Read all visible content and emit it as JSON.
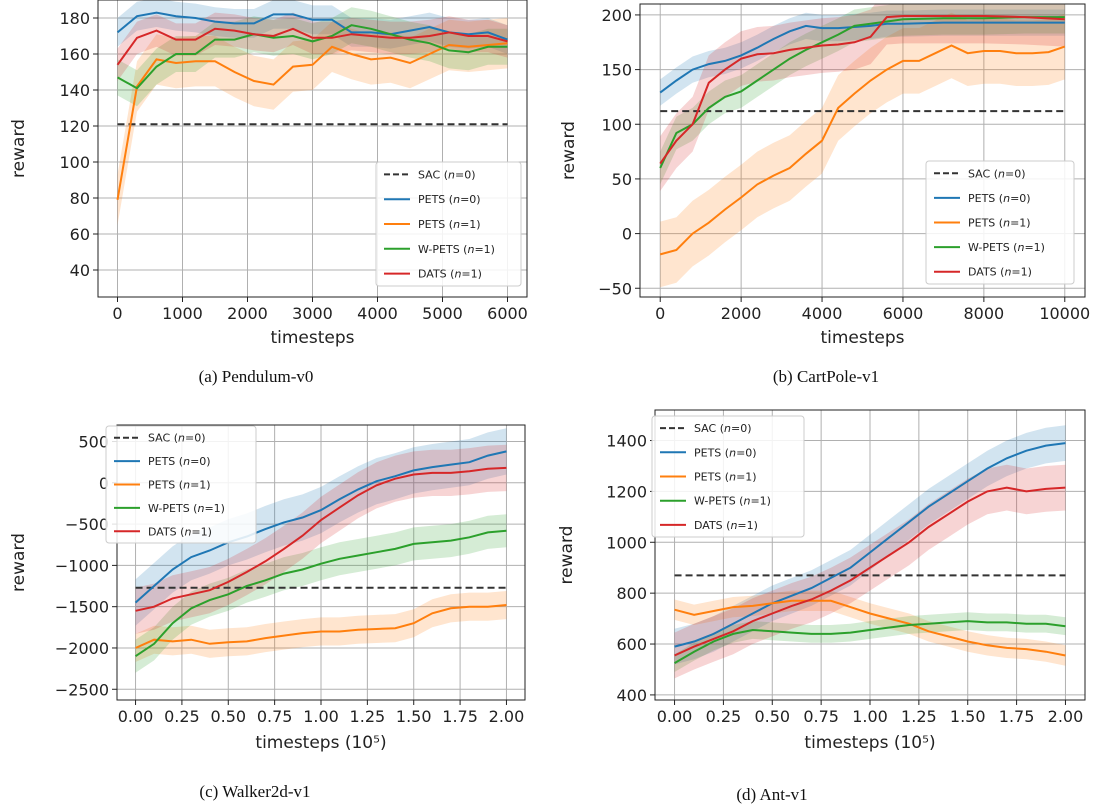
{
  "colors": {
    "SAC": "#333333",
    "PETS (n=0)": "#1f77b4",
    "PETS (n=1)": "#ff7f0e",
    "W-PETS (n=1)": "#2ca02c",
    "DATS (n=1)": "#d62728"
  },
  "legend_labels": [
    "SAC (n=0)",
    "PETS (n=0)",
    "PETS (n=1)",
    "W-PETS (n=1)",
    "DATS (n=1)"
  ],
  "chart_data": [
    {
      "type": "line",
      "caption": "(a) Pendulum-v0",
      "xlabel": "timesteps",
      "ylabel": "reward",
      "xlim": [
        -300,
        6300
      ],
      "ylim": [
        25,
        190
      ],
      "xticks": [
        0,
        1000,
        2000,
        3000,
        4000,
        5000,
        6000
      ],
      "yticks": [
        40,
        60,
        80,
        100,
        120,
        140,
        160,
        180
      ],
      "xtick_labels": [
        "0",
        "1000",
        "2000",
        "3000",
        "4000",
        "5000",
        "6000"
      ],
      "ytick_labels": [
        "40",
        "60",
        "80",
        "100",
        "120",
        "140",
        "160",
        "180"
      ],
      "grid": true,
      "legend_position": "center-right",
      "baseline": {
        "name": "SAC (n=0)",
        "y": 121,
        "x_range": [
          0,
          6000
        ]
      },
      "series": [
        {
          "name": "PETS (n=0)",
          "band": 8,
          "x": [
            0,
            300,
            600,
            900,
            1200,
            1500,
            1800,
            2100,
            2400,
            2700,
            3000,
            3300,
            3600,
            3900,
            4200,
            4500,
            4800,
            5100,
            5400,
            5700,
            6000
          ],
          "y": [
            172,
            181,
            183,
            181,
            180,
            178,
            177,
            177,
            182,
            182,
            179,
            179,
            172,
            172,
            171,
            173,
            175,
            172,
            171,
            172,
            168
          ]
        },
        {
          "name": "PETS (n=1)",
          "band": 14,
          "x": [
            0,
            300,
            600,
            900,
            1200,
            1500,
            1800,
            2100,
            2400,
            2700,
            3000,
            3300,
            3600,
            3900,
            4200,
            4500,
            4800,
            5100,
            5400,
            5700,
            6000
          ],
          "y": [
            79,
            142,
            157,
            155,
            156,
            156,
            150,
            145,
            143,
            153,
            154,
            164,
            160,
            157,
            158,
            155,
            160,
            165,
            164,
            165,
            166
          ]
        },
        {
          "name": "W-PETS (n=1)",
          "band": 10,
          "x": [
            0,
            300,
            600,
            900,
            1200,
            1500,
            1800,
            2100,
            2400,
            2700,
            3000,
            3300,
            3600,
            3900,
            4200,
            4500,
            4800,
            5100,
            5400,
            5700,
            6000
          ],
          "y": [
            147,
            141,
            153,
            160,
            160,
            168,
            168,
            171,
            169,
            170,
            167,
            170,
            176,
            174,
            171,
            168,
            166,
            162,
            161,
            164,
            164
          ]
        },
        {
          "name": "DATS (n=1)",
          "band": 9,
          "x": [
            0,
            300,
            600,
            900,
            1200,
            1500,
            1800,
            2100,
            2400,
            2700,
            3000,
            3300,
            3600,
            3900,
            4200,
            4500,
            4800,
            5100,
            5400,
            5700,
            6000
          ],
          "y": [
            154,
            169,
            173,
            168,
            168,
            174,
            173,
            171,
            170,
            174,
            169,
            169,
            171,
            170,
            169,
            169,
            170,
            172,
            170,
            170,
            167
          ]
        }
      ]
    },
    {
      "type": "line",
      "caption": "(b) CartPole-v1",
      "xlabel": "timesteps",
      "ylabel": "reward",
      "xlim": [
        -500,
        10500
      ],
      "ylim": [
        -58,
        210
      ],
      "xticks": [
        0,
        2000,
        4000,
        6000,
        8000,
        10000
      ],
      "yticks": [
        -50,
        0,
        50,
        100,
        150,
        200
      ],
      "xtick_labels": [
        "0",
        "2000",
        "4000",
        "6000",
        "8000",
        "10000"
      ],
      "ytick_labels": [
        "−50",
        "0",
        "50",
        "100",
        "150",
        "200"
      ],
      "grid": true,
      "legend_position": "lower-right",
      "baseline": {
        "name": "SAC (n=0)",
        "y": 112,
        "x_range": [
          0,
          10000
        ]
      },
      "series": [
        {
          "name": "PETS (n=0)",
          "band": 12,
          "x": [
            0,
            400,
            800,
            1200,
            1600,
            2000,
            2400,
            2800,
            3200,
            3600,
            4000,
            4400,
            4800,
            5200,
            5600,
            6000,
            7000,
            8000,
            9000,
            10000
          ],
          "y": [
            129,
            140,
            150,
            155,
            158,
            163,
            170,
            178,
            185,
            190,
            188,
            188,
            189,
            190,
            192,
            192,
            193,
            193,
            193,
            193
          ]
        },
        {
          "name": "PETS (n=1)",
          "band": 30,
          "x": [
            0,
            400,
            800,
            1200,
            1600,
            2000,
            2400,
            2800,
            3200,
            3600,
            4000,
            4400,
            4800,
            5200,
            5600,
            6000,
            6400,
            6800,
            7200,
            7600,
            8000,
            8400,
            8800,
            9200,
            9600,
            10000
          ],
          "y": [
            -19,
            -15,
            0,
            10,
            22,
            33,
            45,
            53,
            60,
            73,
            85,
            115,
            128,
            140,
            150,
            158,
            158,
            165,
            172,
            165,
            167,
            167,
            165,
            165,
            166,
            171
          ]
        },
        {
          "name": "W-PETS (n=1)",
          "band": 15,
          "x": [
            0,
            400,
            800,
            1200,
            1600,
            2000,
            2400,
            2800,
            3200,
            3600,
            4000,
            4400,
            4800,
            5200,
            5600,
            6000,
            7000,
            8000,
            9000,
            10000
          ],
          "y": [
            60,
            92,
            100,
            115,
            125,
            130,
            140,
            150,
            160,
            168,
            175,
            182,
            190,
            192,
            194,
            196,
            197,
            197,
            198,
            198
          ]
        },
        {
          "name": "DATS (n=1)",
          "band": 25,
          "x": [
            0,
            400,
            800,
            1200,
            1600,
            2000,
            2400,
            2800,
            3200,
            3600,
            4000,
            4400,
            4800,
            5200,
            5600,
            6000,
            7000,
            8000,
            9000,
            10000
          ],
          "y": [
            64,
            85,
            100,
            138,
            150,
            160,
            164,
            165,
            168,
            170,
            172,
            173,
            175,
            180,
            198,
            199,
            199,
            199,
            198,
            196
          ]
        }
      ]
    },
    {
      "type": "line",
      "caption": "(c) Walker2d-v1",
      "xlabel": "timesteps (10⁵)",
      "ylabel": "reward",
      "xlim": [
        -0.1,
        2.1
      ],
      "ylim": [
        -2630,
        700
      ],
      "xticks": [
        0,
        0.25,
        0.5,
        0.75,
        1.0,
        1.25,
        1.5,
        1.75,
        2.0
      ],
      "yticks": [
        -2500,
        -2000,
        -1500,
        -1000,
        -500,
        0,
        500
      ],
      "xtick_labels": [
        "0.00",
        "0.25",
        "0.50",
        "0.75",
        "1.00",
        "1.25",
        "1.50",
        "1.75",
        "2.00"
      ],
      "ytick_labels": [
        "−2500",
        "−2000",
        "−1500",
        "−1000",
        "−500",
        "0",
        "500"
      ],
      "grid": true,
      "legend_position": "top-left",
      "baseline": {
        "name": "SAC (n=0)",
        "y": -1270,
        "x_range": [
          0,
          2.0
        ]
      },
      "series": [
        {
          "name": "PETS (n=0)",
          "band": 280,
          "x": [
            0,
            0.1,
            0.2,
            0.3,
            0.4,
            0.5,
            0.6,
            0.7,
            0.8,
            0.9,
            1.0,
            1.1,
            1.2,
            1.3,
            1.4,
            1.5,
            1.6,
            1.7,
            1.8,
            1.9,
            2.0
          ],
          "y": [
            -1450,
            -1250,
            -1050,
            -900,
            -820,
            -720,
            -650,
            -560,
            -480,
            -420,
            -330,
            -200,
            -80,
            20,
            80,
            150,
            190,
            220,
            250,
            330,
            380
          ]
        },
        {
          "name": "PETS (n=1)",
          "band": 170,
          "x": [
            0,
            0.1,
            0.2,
            0.3,
            0.4,
            0.5,
            0.6,
            0.7,
            0.8,
            0.9,
            1.0,
            1.1,
            1.2,
            1.3,
            1.4,
            1.5,
            1.6,
            1.7,
            1.8,
            1.9,
            2.0
          ],
          "y": [
            -2000,
            -1900,
            -1920,
            -1900,
            -1950,
            -1930,
            -1920,
            -1880,
            -1850,
            -1820,
            -1800,
            -1800,
            -1780,
            -1770,
            -1760,
            -1700,
            -1580,
            -1520,
            -1500,
            -1500,
            -1480
          ]
        },
        {
          "name": "W-PETS (n=1)",
          "band": 200,
          "x": [
            0,
            0.1,
            0.2,
            0.3,
            0.4,
            0.5,
            0.6,
            0.7,
            0.8,
            0.9,
            1.0,
            1.1,
            1.2,
            1.3,
            1.4,
            1.5,
            1.6,
            1.7,
            1.8,
            1.9,
            2.0
          ],
          "y": [
            -2100,
            -1950,
            -1700,
            -1520,
            -1420,
            -1350,
            -1250,
            -1180,
            -1100,
            -1050,
            -980,
            -920,
            -880,
            -840,
            -800,
            -740,
            -720,
            -700,
            -660,
            -600,
            -580
          ]
        },
        {
          "name": "DATS (n=1)",
          "band": 280,
          "x": [
            0,
            0.1,
            0.2,
            0.3,
            0.4,
            0.5,
            0.6,
            0.7,
            0.8,
            0.9,
            1.0,
            1.1,
            1.2,
            1.3,
            1.4,
            1.5,
            1.6,
            1.7,
            1.8,
            1.9,
            2.0
          ],
          "y": [
            -1550,
            -1500,
            -1400,
            -1350,
            -1300,
            -1200,
            -1080,
            -950,
            -800,
            -640,
            -450,
            -300,
            -150,
            -30,
            50,
            100,
            120,
            120,
            140,
            170,
            180
          ]
        }
      ]
    },
    {
      "type": "line",
      "caption": "(d) Ant-v1",
      "xlabel": "timesteps (10⁵)",
      "ylabel": "reward",
      "xlim": [
        -0.1,
        2.1
      ],
      "ylim": [
        380,
        1520
      ],
      "xticks": [
        0,
        0.25,
        0.5,
        0.75,
        1.0,
        1.25,
        1.5,
        1.75,
        2.0
      ],
      "yticks": [
        400,
        600,
        800,
        1000,
        1200,
        1400
      ],
      "xtick_labels": [
        "0.00",
        "0.25",
        "0.50",
        "0.75",
        "1.00",
        "1.25",
        "1.50",
        "1.75",
        "2.00"
      ],
      "ytick_labels": [
        "400",
        "600",
        "800",
        "1000",
        "1200",
        "1400"
      ],
      "grid": true,
      "legend_position": "top-left",
      "baseline": {
        "name": "SAC (n=0)",
        "y": 870,
        "x_range": [
          0,
          2.0
        ]
      },
      "series": [
        {
          "name": "PETS (n=0)",
          "band": 70,
          "x": [
            0,
            0.1,
            0.2,
            0.3,
            0.4,
            0.5,
            0.6,
            0.7,
            0.8,
            0.9,
            1.0,
            1.1,
            1.2,
            1.3,
            1.4,
            1.5,
            1.6,
            1.7,
            1.8,
            1.9,
            2.0
          ],
          "y": [
            590,
            610,
            640,
            680,
            720,
            760,
            790,
            820,
            860,
            900,
            960,
            1020,
            1080,
            1140,
            1190,
            1240,
            1290,
            1330,
            1360,
            1380,
            1390
          ]
        },
        {
          "name": "PETS (n=1)",
          "band": 40,
          "x": [
            0,
            0.1,
            0.2,
            0.3,
            0.4,
            0.5,
            0.6,
            0.7,
            0.8,
            0.9,
            1.0,
            1.1,
            1.2,
            1.3,
            1.4,
            1.5,
            1.6,
            1.7,
            1.8,
            1.9,
            2.0
          ],
          "y": [
            735,
            715,
            730,
            745,
            750,
            760,
            770,
            770,
            770,
            745,
            720,
            700,
            680,
            650,
            630,
            610,
            595,
            585,
            580,
            570,
            555
          ]
        },
        {
          "name": "W-PETS (n=1)",
          "band": 35,
          "x": [
            0,
            0.1,
            0.2,
            0.3,
            0.4,
            0.5,
            0.6,
            0.7,
            0.8,
            0.9,
            1.0,
            1.1,
            1.2,
            1.3,
            1.4,
            1.5,
            1.6,
            1.7,
            1.8,
            1.9,
            2.0
          ],
          "y": [
            525,
            570,
            610,
            640,
            655,
            650,
            645,
            640,
            640,
            645,
            655,
            665,
            675,
            680,
            685,
            690,
            685,
            685,
            680,
            680,
            670
          ]
        },
        {
          "name": "DATS (n=1)",
          "band": 90,
          "x": [
            0,
            0.1,
            0.2,
            0.3,
            0.4,
            0.5,
            0.6,
            0.7,
            0.8,
            0.9,
            1.0,
            1.1,
            1.2,
            1.3,
            1.4,
            1.5,
            1.6,
            1.7,
            1.8,
            1.9,
            2.0
          ],
          "y": [
            555,
            590,
            620,
            650,
            690,
            720,
            750,
            775,
            810,
            850,
            900,
            950,
            1000,
            1060,
            1110,
            1160,
            1200,
            1215,
            1200,
            1210,
            1215
          ]
        }
      ]
    }
  ]
}
